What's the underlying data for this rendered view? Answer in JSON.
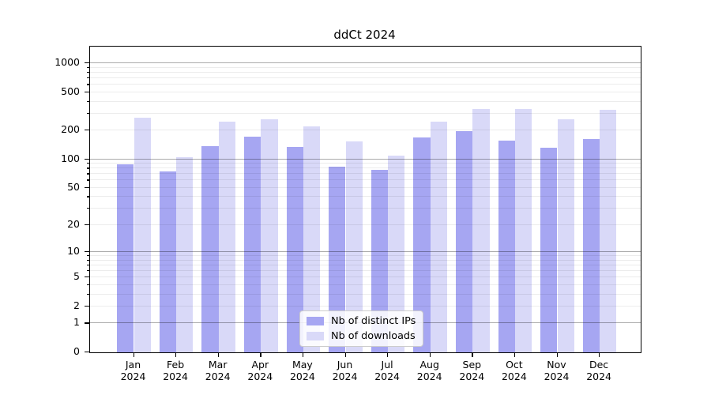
{
  "chart_data": {
    "type": "bar",
    "title": "ddCt 2024",
    "categories": [
      "Jan 2024",
      "Feb 2024",
      "Mar 2024",
      "Apr 2024",
      "May 2024",
      "Jun 2024",
      "Jul 2024",
      "Aug 2024",
      "Sep 2024",
      "Oct 2024",
      "Nov 2024",
      "Dec 2024"
    ],
    "series": [
      {
        "name": "Nb of distinct IPs",
        "color": "#a6a6f2",
        "values": [
          89,
          75,
          138,
          172,
          136,
          83,
          78,
          170,
          197,
          158,
          133,
          162
        ]
      },
      {
        "name": "Nb of downloads",
        "color": "#d9d9f8",
        "values": [
          275,
          106,
          250,
          261,
          222,
          153,
          110,
          248,
          333,
          333,
          260,
          330
        ]
      }
    ],
    "xlabel": "",
    "ylabel": "",
    "y_scale": "log1p",
    "y_tick_labels": [
      "1000",
      "500",
      "200",
      "100",
      "50",
      "20",
      "10",
      "5",
      "2",
      "1",
      "0"
    ],
    "ylim": [
      0,
      1500
    ],
    "grid": "horizontal major+minor, drawn over bars",
    "legend_position": "lower center"
  }
}
